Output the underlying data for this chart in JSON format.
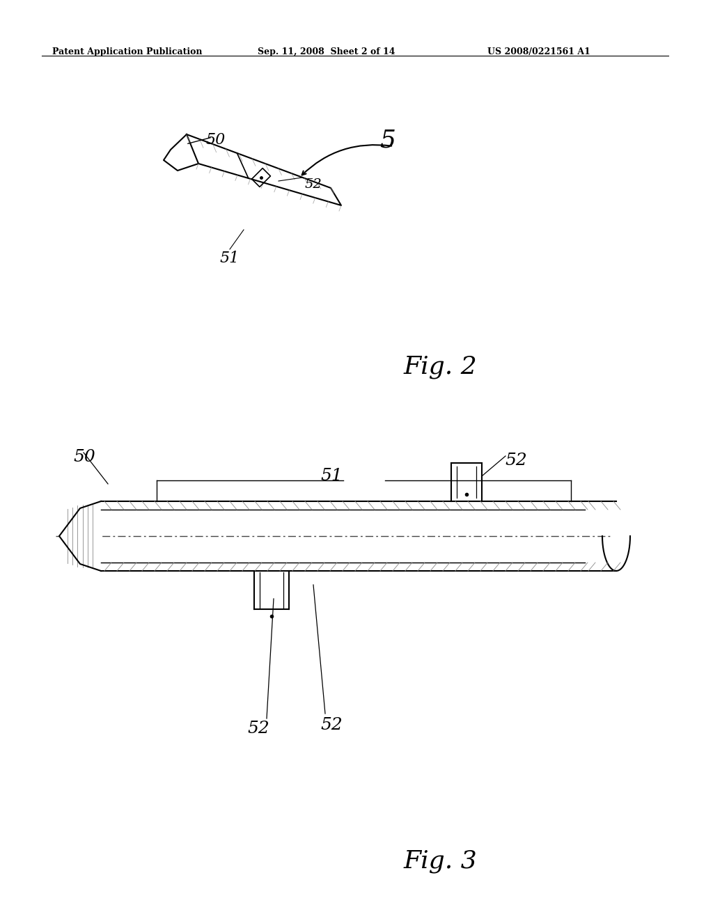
{
  "bg_color": "#ffffff",
  "header_left": "Patent Application Publication",
  "header_mid": "Sep. 11, 2008  Sheet 2 of 14",
  "header_right": "US 2008/0221561 A1",
  "fig2_label": "Fig. 2",
  "fig3_label": "Fig. 3",
  "line_color": "#000000",
  "hatch_color": "#555555",
  "dash_color": "#555555"
}
